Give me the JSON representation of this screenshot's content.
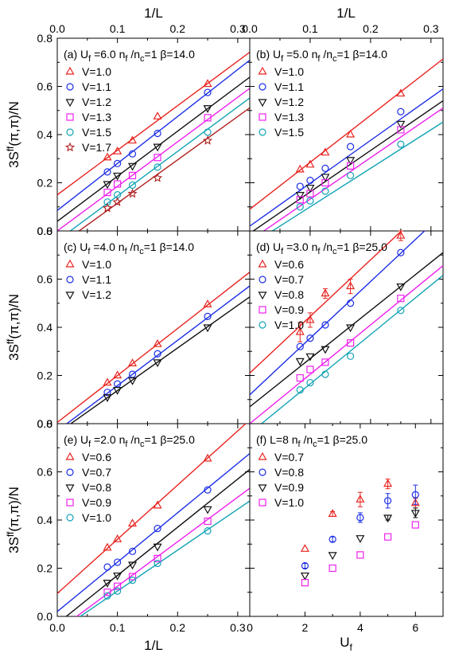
{
  "figure": {
    "top_axis_label": "1/L",
    "bottom_axis_label_left": "1/L",
    "bottom_axis_label_right": "U",
    "bottom_axis_label_right_sub": "f",
    "ylabel_main": "3S",
    "ylabel_sup": "ff",
    "ylabel_tail": "(π,π)/N"
  },
  "chart_data": [
    {
      "id": "a",
      "type": "scatter",
      "label": {
        "prefix": "(a) U",
        "sub": "f",
        "rest": " =6.0  n",
        "sub2": "f",
        "rest2": " /n",
        "sub3": "c",
        "rest3": "=1   β=14.0"
      },
      "x_axis": {
        "label": "1/L",
        "xlim": [
          0,
          0.32
        ],
        "ticks": [
          0.0,
          0.1,
          0.2,
          0.3
        ]
      },
      "y_axis": {
        "label": "3S^ff(π,π)/N",
        "ylim": [
          0,
          0.8
        ],
        "ticks": [
          0.0,
          0.2,
          0.4,
          0.6,
          0.8
        ]
      },
      "series": [
        {
          "name": "V=1.0",
          "color": "#e8231f",
          "marker": "triangle-up",
          "x": [
            0.0833,
            0.1,
            0.125,
            0.1667,
            0.25
          ],
          "y": [
            0.305,
            0.33,
            0.375,
            0.475,
            0.61
          ],
          "fit": [
            0.15,
            1.85
          ]
        },
        {
          "name": "V=1.1",
          "color": "#1c2ee6",
          "marker": "circle",
          "x": [
            0.0833,
            0.1,
            0.125,
            0.1667,
            0.25
          ],
          "y": [
            0.245,
            0.28,
            0.32,
            0.405,
            0.575
          ],
          "fit": [
            0.085,
            1.95
          ]
        },
        {
          "name": "V=1.2",
          "color": "#111111",
          "marker": "triangle-down",
          "x": [
            0.0833,
            0.1,
            0.125,
            0.1667,
            0.25
          ],
          "y": [
            0.195,
            0.23,
            0.27,
            0.35,
            0.51
          ],
          "fit": [
            0.04,
            1.87
          ]
        },
        {
          "name": "V=1.3",
          "color": "#ee22ee",
          "marker": "square",
          "x": [
            0.0833,
            0.1,
            0.125,
            0.1667,
            0.25
          ],
          "y": [
            0.16,
            0.195,
            0.23,
            0.305,
            0.47
          ],
          "fit": [
            0.0,
            1.85
          ]
        },
        {
          "name": "V=1.5",
          "color": "#12a4b4",
          "marker": "circle",
          "x": [
            0.0833,
            0.1,
            0.125,
            0.1667,
            0.25
          ],
          "y": [
            0.12,
            0.15,
            0.19,
            0.265,
            0.41
          ],
          "fit": [
            -0.04,
            1.85
          ]
        },
        {
          "name": "V=1.7",
          "color": "#b02020",
          "marker": "star",
          "x": [
            0.0833,
            0.1,
            0.125,
            0.1667,
            0.25
          ],
          "y": [
            0.095,
            0.12,
            0.155,
            0.22,
            0.375
          ],
          "fit": [
            -0.065,
            1.8
          ]
        }
      ]
    },
    {
      "id": "b",
      "type": "scatter",
      "label": {
        "prefix": "(b) U",
        "sub": "f",
        "rest": " =5.0  n",
        "sub2": "f",
        "rest2": " /n",
        "sub3": "c",
        "rest3": "=1   β=14.0"
      },
      "x_axis": {
        "label": "1/L",
        "xlim": [
          0,
          0.32
        ],
        "ticks": [
          0.0,
          0.1,
          0.2,
          0.3
        ]
      },
      "y_axis": {
        "ylim": [
          0,
          0.8
        ],
        "ticks": [
          0.0,
          0.2,
          0.4,
          0.6,
          0.8
        ]
      },
      "series": [
        {
          "name": "V=1.0",
          "color": "#e8231f",
          "marker": "triangle-up",
          "x": [
            0.0833,
            0.1,
            0.125,
            0.1667,
            0.25
          ],
          "y": [
            0.255,
            0.275,
            0.325,
            0.4,
            0.57
          ],
          "fit": [
            0.09,
            1.95
          ]
        },
        {
          "name": "V=1.1",
          "color": "#1c2ee6",
          "marker": "circle",
          "x": [
            0.0833,
            0.1,
            0.125,
            0.1667,
            0.25
          ],
          "y": [
            0.185,
            0.21,
            0.26,
            0.35,
            0.495
          ],
          "fit": [
            0.02,
            1.78
          ]
        },
        {
          "name": "V=1.2",
          "color": "#111111",
          "marker": "triangle-down",
          "x": [
            0.0833,
            0.1,
            0.125,
            0.1667,
            0.25
          ],
          "y": [
            0.15,
            0.18,
            0.225,
            0.295,
            0.445
          ],
          "fit": [
            -0.01,
            1.72
          ]
        },
        {
          "name": "V=1.3",
          "color": "#ee22ee",
          "marker": "square",
          "x": [
            0.0833,
            0.1,
            0.125,
            0.1667,
            0.25
          ],
          "y": [
            0.13,
            0.155,
            0.2,
            0.27,
            0.42
          ],
          "fit": [
            -0.04,
            1.72
          ]
        },
        {
          "name": "V=1.5",
          "color": "#12a4b4",
          "marker": "circle",
          "x": [
            0.0833,
            0.1,
            0.125,
            0.1667,
            0.25
          ],
          "y": [
            0.1,
            0.125,
            0.165,
            0.23,
            0.36
          ],
          "fit": [
            -0.06,
            1.6
          ]
        }
      ]
    },
    {
      "id": "c",
      "type": "scatter",
      "label": {
        "prefix": "(c) U",
        "sub": "f",
        "rest": " =4.0  n",
        "sub2": "f",
        "rest2": " /n",
        "sub3": "c",
        "rest3": "=1   β=14.0"
      },
      "x_axis": {
        "label": "1/L",
        "xlim": [
          0,
          0.32
        ],
        "ticks": [
          0.0,
          0.1,
          0.2,
          0.3
        ]
      },
      "y_axis": {
        "label": "3S^ff(π,π)/N",
        "ylim": [
          0,
          0.8
        ],
        "ticks": [
          0.0,
          0.2,
          0.4,
          0.6,
          0.8
        ]
      },
      "series": [
        {
          "name": "V=1.0",
          "color": "#e8231f",
          "marker": "triangle-up",
          "x": [
            0.0833,
            0.1,
            0.125,
            0.1667,
            0.25
          ],
          "y": [
            0.17,
            0.2,
            0.25,
            0.33,
            0.495
          ],
          "fit": [
            0.005,
            1.95
          ]
        },
        {
          "name": "V=1.1",
          "color": "#1c2ee6",
          "marker": "circle",
          "x": [
            0.0833,
            0.1,
            0.125,
            0.1667,
            0.25
          ],
          "y": [
            0.13,
            0.165,
            0.205,
            0.29,
            0.445
          ],
          "fit": [
            -0.03,
            1.88
          ]
        },
        {
          "name": "V=1.2",
          "color": "#111111",
          "marker": "triangle-down",
          "x": [
            0.0833,
            0.1,
            0.125,
            0.1667,
            0.25
          ],
          "y": [
            0.11,
            0.14,
            0.18,
            0.255,
            0.4
          ],
          "fit": [
            -0.04,
            1.77
          ]
        }
      ]
    },
    {
      "id": "d",
      "type": "scatter",
      "label": {
        "prefix": "(d) U",
        "sub": "f",
        "rest": " =3.0  n",
        "sub2": "f",
        "rest2": " /n",
        "sub3": "c",
        "rest3": "=1   β=25.0"
      },
      "x_axis": {
        "label": "1/L",
        "xlim": [
          0,
          0.32
        ],
        "ticks": [
          0.0,
          0.1,
          0.2,
          0.3
        ]
      },
      "y_axis": {
        "ylim": [
          0,
          0.8
        ],
        "ticks": [
          0.0,
          0.2,
          0.4,
          0.6,
          0.8
        ]
      },
      "series": [
        {
          "name": "V=0.6",
          "color": "#e8231f",
          "marker": "triangle-up",
          "x": [
            0.0833,
            0.1,
            0.125,
            0.1667,
            0.25
          ],
          "y": [
            0.38,
            0.43,
            0.54,
            0.57,
            0.78
          ],
          "err": [
            0.04,
            0.03,
            0.02,
            0.03,
            0.02
          ],
          "fit": [
            0.21,
            2.35
          ]
        },
        {
          "name": "V=0.7",
          "color": "#1c2ee6",
          "marker": "circle",
          "x": [
            0.0833,
            0.1,
            0.125,
            0.1667,
            0.25
          ],
          "y": [
            0.32,
            0.355,
            0.41,
            0.5,
            0.71
          ],
          "fit": [
            0.12,
            2.35
          ]
        },
        {
          "name": "V=0.8",
          "color": "#111111",
          "marker": "triangle-down",
          "x": [
            0.0833,
            0.1,
            0.125,
            0.1667,
            0.25
          ],
          "y": [
            0.26,
            0.28,
            0.31,
            0.4,
            0.57
          ],
          "fit": [
            0.07,
            2.0
          ]
        },
        {
          "name": "V=0.9",
          "color": "#ee22ee",
          "marker": "square",
          "x": [
            0.0833,
            0.1,
            0.125,
            0.1667,
            0.25
          ],
          "y": [
            0.19,
            0.225,
            0.255,
            0.335,
            0.52
          ],
          "fit": [
            0.0,
            2.05
          ]
        },
        {
          "name": "V=1.0",
          "color": "#12a4b4",
          "marker": "circle",
          "x": [
            0.0833,
            0.1,
            0.125,
            0.1667,
            0.25
          ],
          "y": [
            0.14,
            0.17,
            0.205,
            0.28,
            0.47
          ],
          "fit": [
            -0.04,
            2.05
          ]
        }
      ]
    },
    {
      "id": "e",
      "type": "scatter",
      "label": {
        "prefix": "(e) U",
        "sub": "f",
        "rest": " =2.0  n",
        "sub2": "f",
        "rest2": " /n",
        "sub3": "c",
        "rest3": "=1   β=25.0"
      },
      "x_axis": {
        "label": "1/L",
        "xlim": [
          0,
          0.32
        ],
        "ticks": [
          0.0,
          0.1,
          0.2,
          0.3
        ]
      },
      "y_axis": {
        "label": "3S^ff(π,π)/N",
        "ylim": [
          0,
          0.8
        ],
        "ticks": [
          0.0,
          0.2,
          0.4,
          0.6,
          0.8
        ]
      },
      "series": [
        {
          "name": "V=0.6",
          "color": "#e8231f",
          "marker": "triangle-up",
          "x": [
            0.0833,
            0.1,
            0.125,
            0.1667,
            0.25
          ],
          "y": [
            0.285,
            0.32,
            0.385,
            0.46,
            0.655
          ],
          "fit": [
            0.095,
            2.25
          ]
        },
        {
          "name": "V=0.7",
          "color": "#1c2ee6",
          "marker": "circle",
          "x": [
            0.0833,
            0.1,
            0.125,
            0.1667,
            0.25
          ],
          "y": [
            0.205,
            0.225,
            0.27,
            0.365,
            0.525
          ],
          "fit": [
            0.02,
            2.05
          ]
        },
        {
          "name": "V=0.8",
          "color": "#111111",
          "marker": "triangle-down",
          "x": [
            0.0833,
            0.1,
            0.125,
            0.1667,
            0.25
          ],
          "y": [
            0.14,
            0.17,
            0.215,
            0.29,
            0.445
          ],
          "fit": [
            -0.03,
            2.0
          ]
        },
        {
          "name": "V=0.9",
          "color": "#ee22ee",
          "marker": "square",
          "x": [
            0.0833,
            0.1,
            0.125,
            0.1667,
            0.25
          ],
          "y": [
            0.1,
            0.125,
            0.165,
            0.24,
            0.395
          ],
          "fit": [
            -0.06,
            1.85
          ]
        },
        {
          "name": "V=1.0",
          "color": "#12a4b4",
          "marker": "circle",
          "x": [
            0.0833,
            0.1,
            0.125,
            0.1667,
            0.25
          ],
          "y": [
            0.085,
            0.105,
            0.15,
            0.22,
            0.355
          ],
          "fit": [
            -0.065,
            1.7
          ]
        }
      ]
    },
    {
      "id": "f",
      "type": "scatter",
      "label": {
        "prefix": "(f) L=8  n",
        "sub": "f",
        "rest": " /n",
        "sub2": "c",
        "rest2": "=1   β=25.0",
        "sub3": "",
        "rest3": ""
      },
      "x_axis": {
        "label": "U_f",
        "xlim": [
          0,
          7
        ],
        "ticks": [
          0,
          2,
          4,
          6
        ]
      },
      "y_axis": {
        "ylim": [
          0,
          0.8
        ],
        "ticks": [
          0.0,
          0.2,
          0.4,
          0.6,
          0.8
        ]
      },
      "series": [
        {
          "name": "V=0.7",
          "color": "#e8231f",
          "marker": "triangle-up",
          "x": [
            2,
            3,
            4,
            5,
            6
          ],
          "y": [
            0.28,
            0.425,
            0.485,
            0.55,
            0.47
          ],
          "err": [
            0,
            0.01,
            0.03,
            0.02,
            0.02
          ]
        },
        {
          "name": "V=0.8",
          "color": "#1c2ee6",
          "marker": "circle",
          "x": [
            2,
            3,
            4,
            5,
            6
          ],
          "y": [
            0.21,
            0.32,
            0.41,
            0.48,
            0.505
          ],
          "err": [
            0.01,
            0.01,
            0.02,
            0.03,
            0.04
          ]
        },
        {
          "name": "V=0.9",
          "color": "#111111",
          "marker": "triangle-down",
          "x": [
            2,
            3,
            4,
            5,
            6
          ],
          "y": [
            0.17,
            0.255,
            0.325,
            0.41,
            0.43
          ],
          "err": [
            0,
            0,
            0,
            0.01,
            0.02
          ]
        },
        {
          "name": "V=1.0",
          "color": "#ee22ee",
          "marker": "square",
          "x": [
            2,
            3,
            4,
            5,
            6
          ],
          "y": [
            0.14,
            0.2,
            0.255,
            0.33,
            0.38
          ],
          "err": [
            0,
            0,
            0,
            0,
            0
          ]
        }
      ]
    }
  ]
}
